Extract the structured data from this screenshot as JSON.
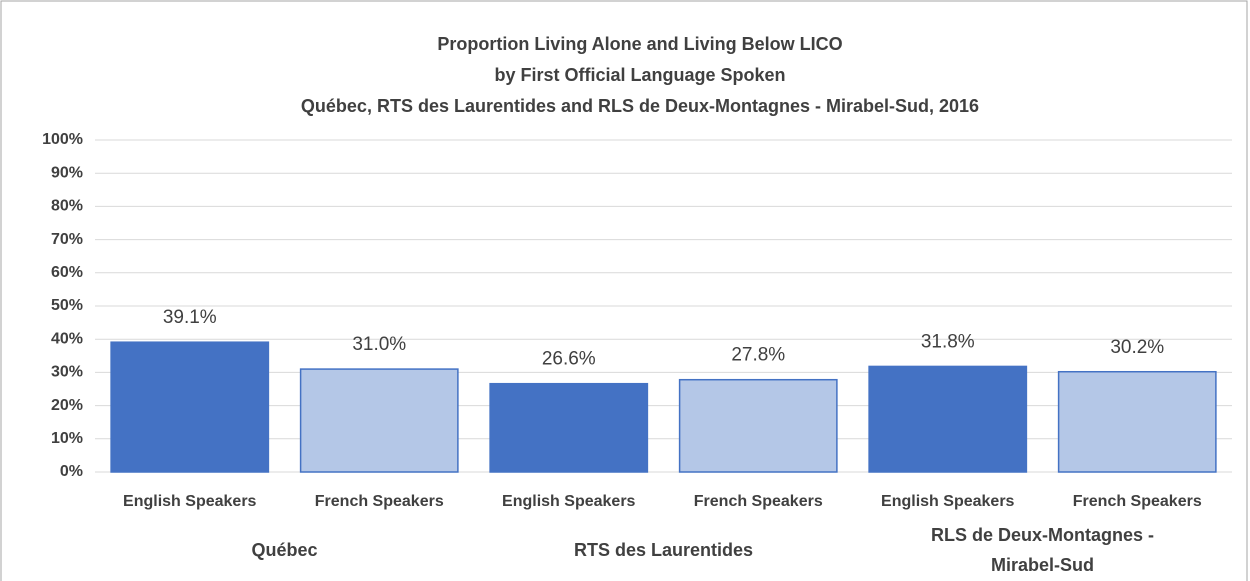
{
  "chart_data": {
    "type": "bar",
    "title": [
      "Proportion Living Alone and Living Below LICO",
      "by First Official Language Spoken",
      "Québec, RTS des Laurentides and RLS de Deux-Montagnes - Mirabel-Sud, 2016"
    ],
    "categories": [
      "English Speakers",
      "French Speakers",
      "English Speakers",
      "French Speakers",
      "English Speakers",
      "French Speakers"
    ],
    "groups": [
      "Québec",
      "RTS des Laurentides",
      "RLS de Deux-Montagnes - Mirabel-Sud"
    ],
    "values": [
      39.1,
      31.0,
      26.6,
      27.8,
      31.8,
      30.2
    ],
    "value_labels": [
      "39.1%",
      "31.0%",
      "26.6%",
      "27.8%",
      "31.8%",
      "30.2%"
    ],
    "colors": [
      "#4472c4",
      "#b4c7e7",
      "#4472c4",
      "#b4c7e7",
      "#4472c4",
      "#b4c7e7"
    ],
    "ylim": [
      0,
      100
    ],
    "yticks": [
      {
        "value": 0,
        "label": "0%"
      },
      {
        "value": 10,
        "label": "10%"
      },
      {
        "value": 20,
        "label": "20%"
      },
      {
        "value": 30,
        "label": "30%"
      },
      {
        "value": 40,
        "label": "40%"
      },
      {
        "value": 50,
        "label": "50%"
      },
      {
        "value": 60,
        "label": "60%"
      },
      {
        "value": 70,
        "label": "70%"
      },
      {
        "value": 80,
        "label": "80%"
      },
      {
        "value": 90,
        "label": "90%"
      },
      {
        "value": 100,
        "label": "100%"
      }
    ],
    "grid": true
  }
}
